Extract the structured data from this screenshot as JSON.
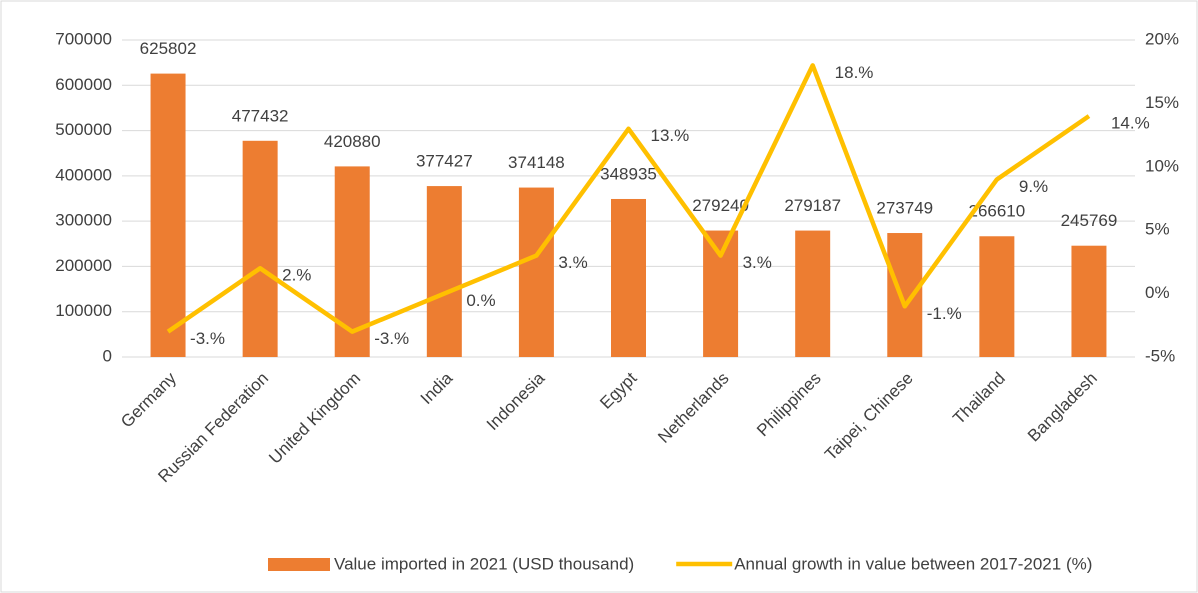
{
  "chart_data": {
    "type": "bar+line",
    "categories": [
      "Germany",
      "Russian Federation",
      "United Kingdom",
      "India",
      "Indonesia",
      "Egypt",
      "Netherlands",
      "Philippines",
      "Taipei, Chinese",
      "Thailand",
      "Bangladesh"
    ],
    "series": [
      {
        "name": "Value imported in 2021 (USD thousand)",
        "type": "bar",
        "color": "#ed7d31",
        "axis": "y",
        "values": [
          625802,
          477432,
          420880,
          377427,
          374148,
          348935,
          279240,
          279187,
          273749,
          266610,
          245769
        ]
      },
      {
        "name": "Annual growth in value between 2017-2021 (%)",
        "type": "line",
        "color": "#ffc000",
        "axis": "y2",
        "values": [
          -3,
          2,
          -3,
          0,
          3,
          13,
          3,
          18,
          -1,
          9,
          14
        ],
        "value_labels": [
          "-3.%",
          "2.%",
          "-3.%",
          "0.%",
          "3.%",
          "13.%",
          "3.%",
          "18.%",
          "-1.%",
          "9.%",
          "14.%"
        ]
      }
    ],
    "ylim": [
      0,
      700000
    ],
    "yticks": [
      0,
      100000,
      200000,
      300000,
      400000,
      500000,
      600000,
      700000
    ],
    "y2lim": [
      -5,
      20
    ],
    "y2ticks": [
      {
        "value": -5,
        "label": "-5%"
      },
      {
        "value": 0,
        "label": "0%"
      },
      {
        "value": 5,
        "label": "5%"
      },
      {
        "value": 10,
        "label": "10%"
      },
      {
        "value": 15,
        "label": "15%"
      },
      {
        "value": 20,
        "label": "20%"
      }
    ],
    "grid": true,
    "legend": "bottom"
  }
}
